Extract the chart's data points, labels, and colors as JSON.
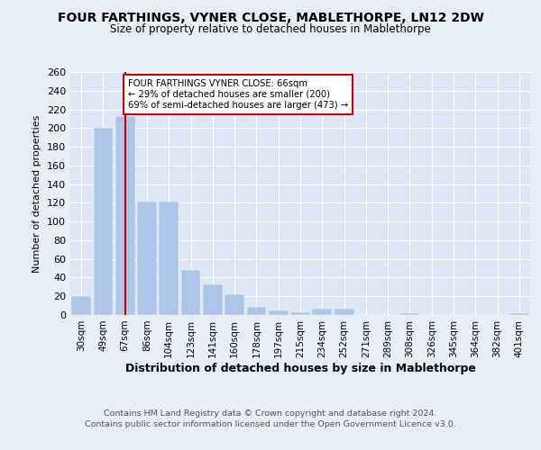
{
  "title": "FOUR FARTHINGS, VYNER CLOSE, MABLETHORPE, LN12 2DW",
  "subtitle": "Size of property relative to detached houses in Mablethorpe",
  "xlabel": "Distribution of detached houses by size in Mablethorpe",
  "ylabel": "Number of detached properties",
  "categories": [
    "30sqm",
    "49sqm",
    "67sqm",
    "86sqm",
    "104sqm",
    "123sqm",
    "141sqm",
    "160sqm",
    "178sqm",
    "197sqm",
    "215sqm",
    "234sqm",
    "252sqm",
    "271sqm",
    "289sqm",
    "308sqm",
    "326sqm",
    "345sqm",
    "364sqm",
    "382sqm",
    "401sqm"
  ],
  "values": [
    20,
    200,
    213,
    121,
    121,
    48,
    33,
    22,
    9,
    5,
    3,
    7,
    7,
    0,
    0,
    2,
    0,
    0,
    0,
    0,
    2
  ],
  "bar_color": "#aec6e8",
  "bar_edge_color": "#aec6e8",
  "vline_x": 2,
  "vline_color": "#cc0000",
  "annotation_box_color": "#cc0000",
  "annotation_lines": [
    "FOUR FARTHINGS VYNER CLOSE: 66sqm",
    "← 29% of detached houses are smaller (200)",
    "69% of semi-detached houses are larger (473) →"
  ],
  "ylim": [
    0,
    260
  ],
  "yticks": [
    0,
    20,
    40,
    60,
    80,
    100,
    120,
    140,
    160,
    180,
    200,
    220,
    240,
    260
  ],
  "footer_line1": "Contains HM Land Registry data © Crown copyright and database right 2024.",
  "footer_line2": "Contains public sector information licensed under the Open Government Licence v3.0.",
  "background_color": "#e8eef7",
  "plot_bg_color": "#dce6f5"
}
